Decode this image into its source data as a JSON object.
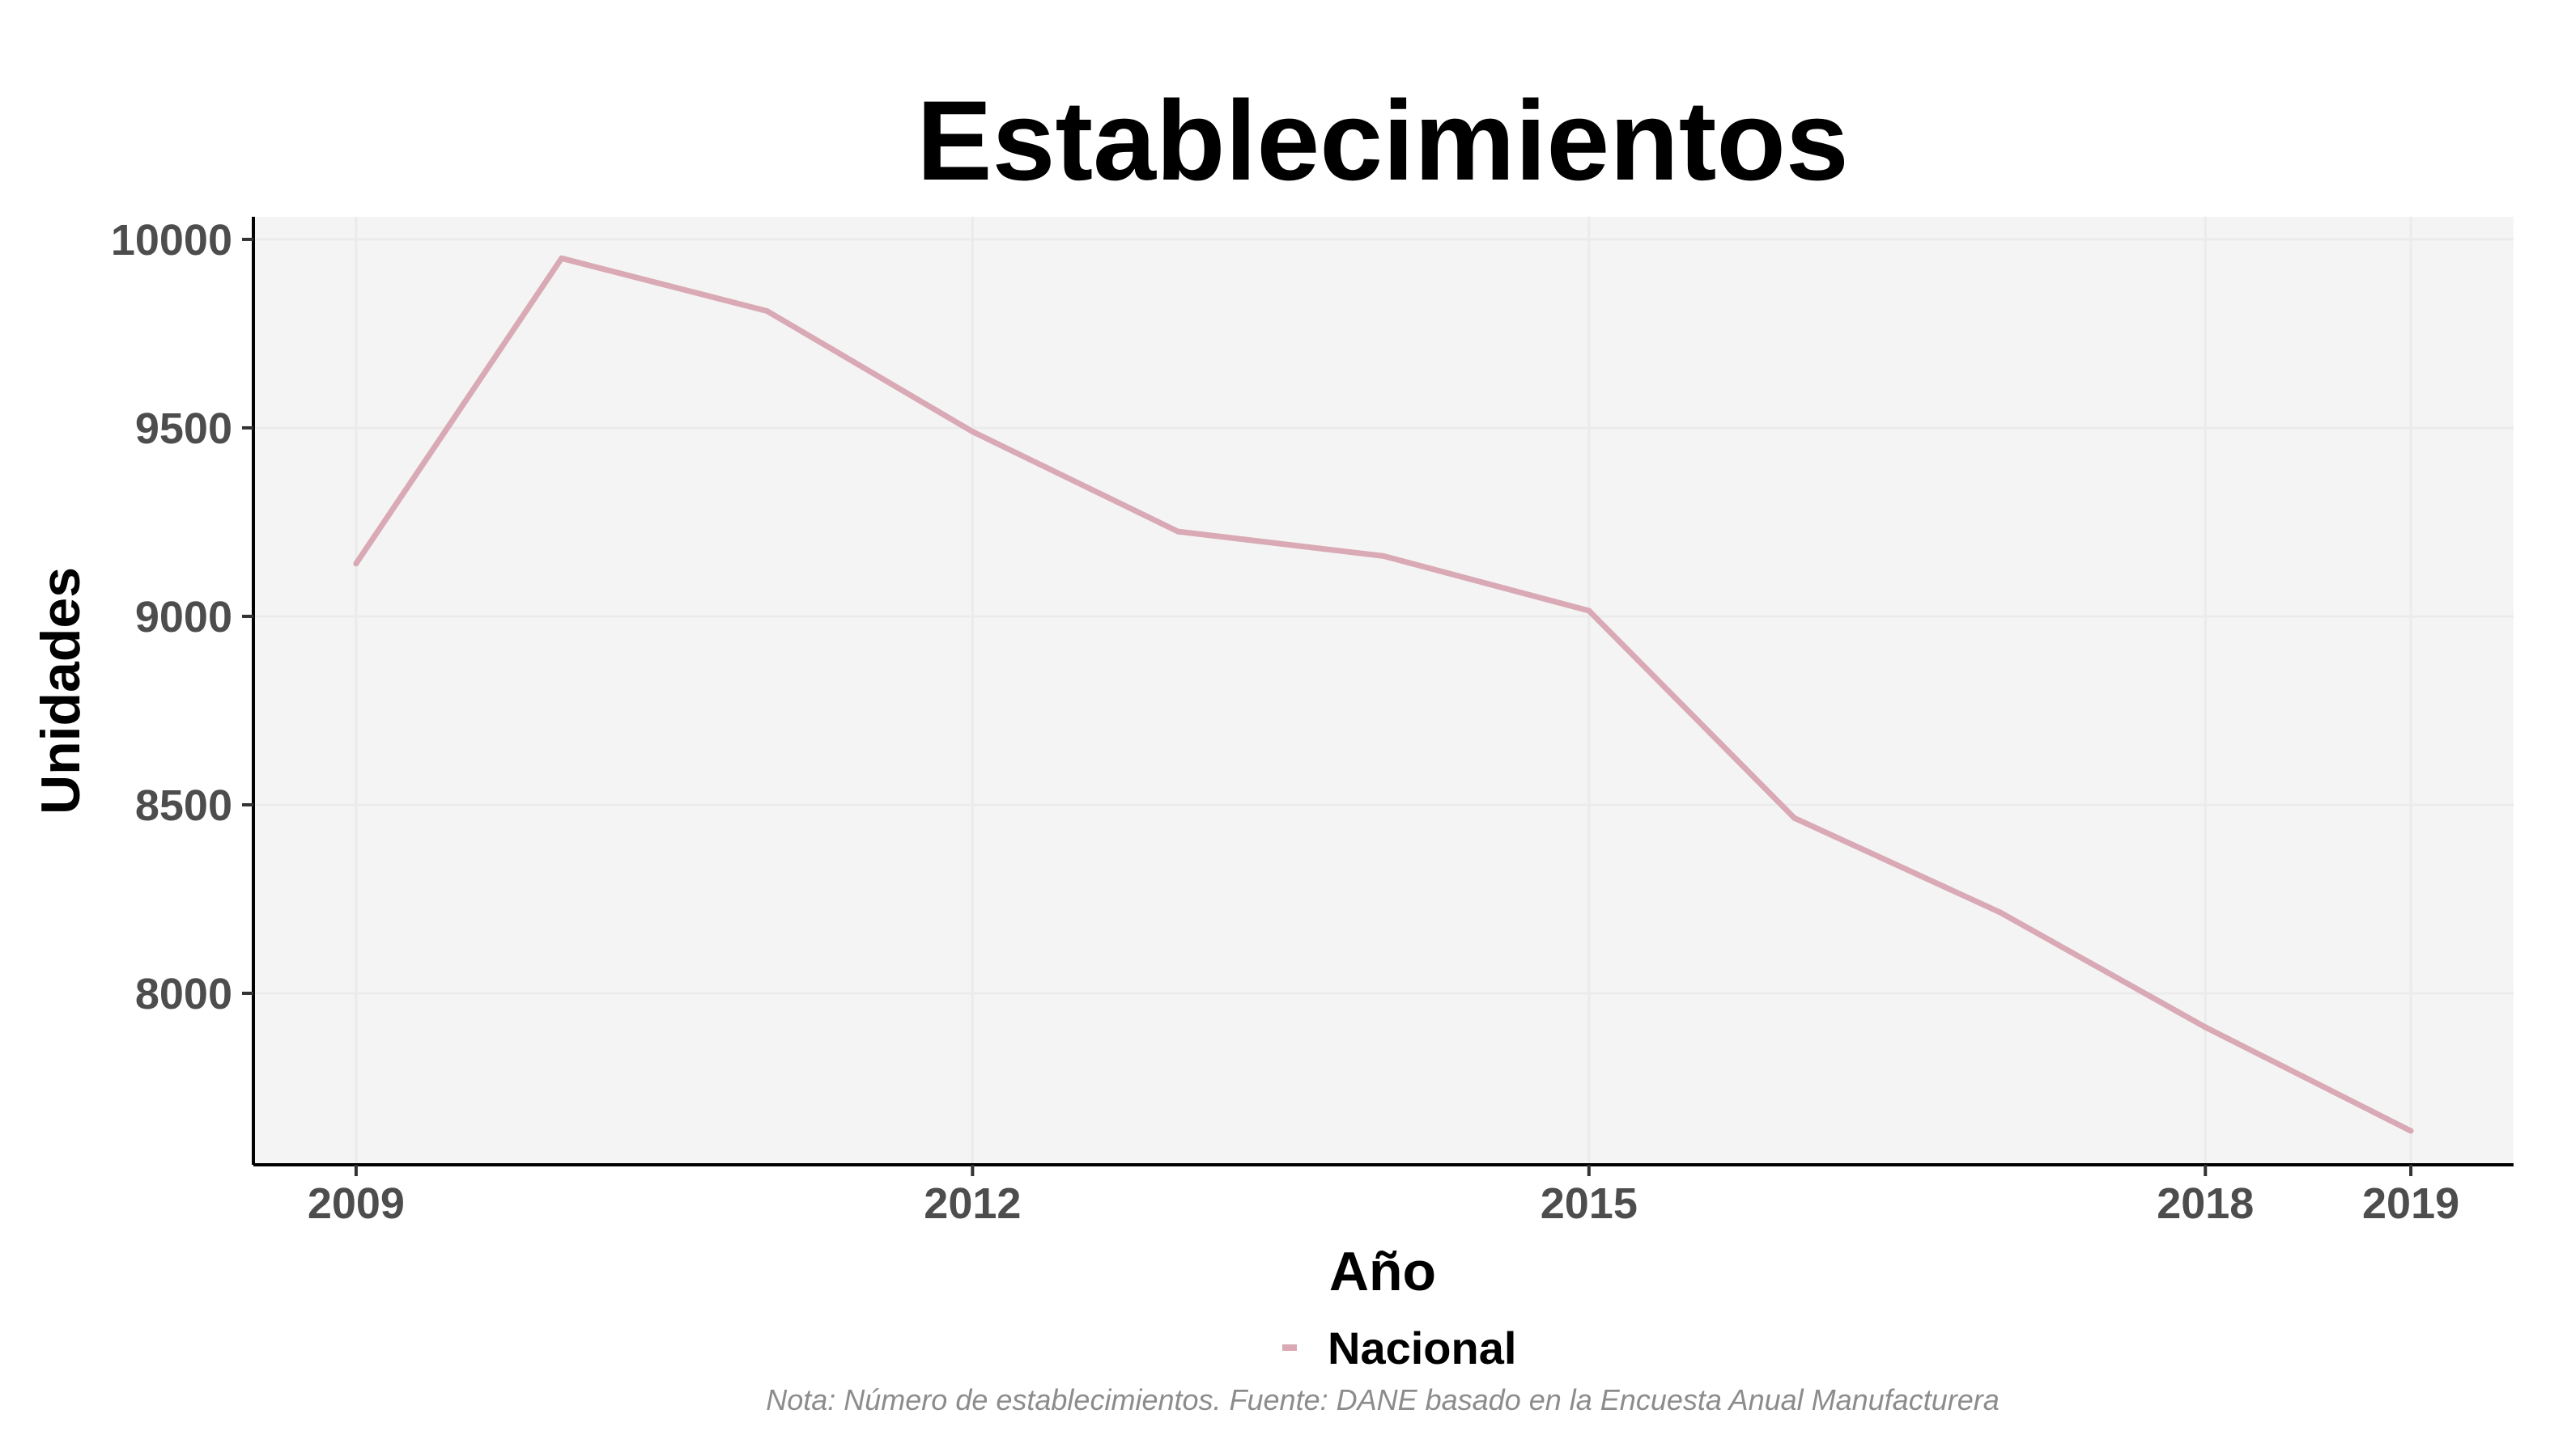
{
  "chart_data": {
    "type": "line",
    "title": "Establecimientos",
    "xlabel": "Año",
    "ylabel": "Unidades",
    "x": [
      2009,
      2010,
      2011,
      2012,
      2013,
      2014,
      2015,
      2016,
      2017,
      2018,
      2019
    ],
    "x_ticks": [
      2009,
      2012,
      2015,
      2018,
      2019
    ],
    "y_ticks": [
      8000,
      8500,
      9000,
      9500,
      10000
    ],
    "xlim": [
      2008.5,
      2019.5
    ],
    "ylim": [
      7545,
      10060
    ],
    "grid": true,
    "legend_position": "bottom",
    "series": [
      {
        "name": "Nacional",
        "color": "#d9a9b5",
        "values": [
          9140,
          9950,
          9810,
          9490,
          9225,
          9160,
          9015,
          8465,
          8215,
          7910,
          7635
        ]
      }
    ],
    "caption": "Nota: Número de establecimientos. Fuente: DANE basado en la Encuesta Anual Manufacturera",
    "colors": {
      "panel_background": "#f4f4f4",
      "grid": "#ebebeb",
      "axis_line": "#000000"
    }
  }
}
